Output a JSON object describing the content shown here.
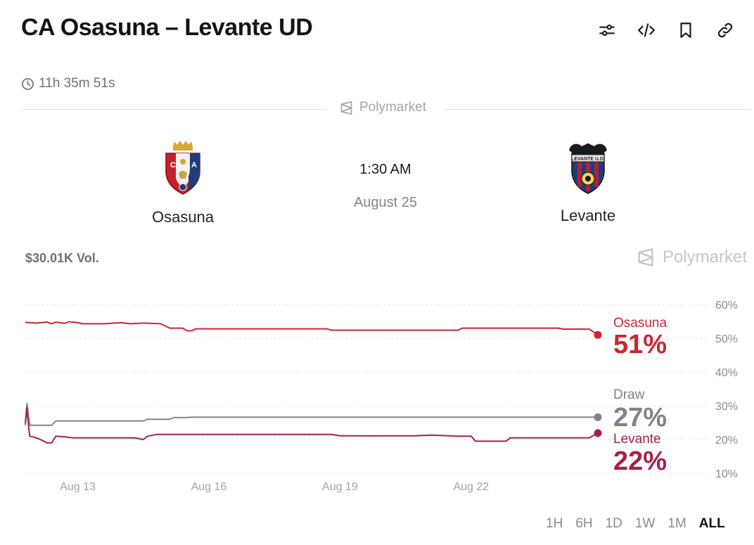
{
  "header": {
    "title": "CA Osasuna – Levante UD",
    "toolbar": [
      {
        "name": "filter-icon"
      },
      {
        "name": "embed-code-icon"
      },
      {
        "name": "bookmark-icon"
      },
      {
        "name": "link-icon"
      }
    ]
  },
  "countdown": "11h 35m 51s",
  "brand": "Polymarket",
  "match": {
    "home": "Osasuna",
    "away": "Levante",
    "time": "1:30 AM",
    "date": "August 25"
  },
  "volume": "$30.01K Vol.",
  "colors": {
    "osasuna": "#cd2630",
    "draw": "#80838f",
    "levante": "#a8204a"
  },
  "chart_data": {
    "type": "line",
    "y_ticks": [
      "60%",
      "50%",
      "40%",
      "30%",
      "20%",
      "10%"
    ],
    "ylim": [
      10,
      60
    ],
    "x_ticks": [
      "Aug 13",
      "Aug 16",
      "Aug 19",
      "Aug 22"
    ],
    "x_tick_positions": [
      12.5,
      15.5,
      18.5,
      21.5
    ],
    "xlim": [
      11.3,
      24.4
    ],
    "grid": true,
    "series": [
      {
        "name": "Osasuna",
        "label": "51%",
        "points": [
          [
            11.3,
            54.7
          ],
          [
            11.55,
            54.5
          ],
          [
            11.8,
            54.8
          ],
          [
            11.9,
            54.3
          ],
          [
            12.0,
            54.8
          ],
          [
            12.2,
            54.4
          ],
          [
            12.3,
            54.9
          ],
          [
            12.5,
            54.6
          ],
          [
            12.6,
            54.3
          ],
          [
            13.1,
            54.3
          ],
          [
            13.5,
            54.6
          ],
          [
            13.7,
            54.3
          ],
          [
            14.0,
            54.5
          ],
          [
            14.4,
            54.3
          ],
          [
            14.6,
            53.0
          ],
          [
            14.9,
            53.0
          ],
          [
            15.0,
            52.2
          ],
          [
            15.1,
            52.2
          ],
          [
            15.2,
            52.8
          ],
          [
            18.2,
            52.8
          ],
          [
            18.3,
            52.4
          ],
          [
            21.2,
            52.4
          ],
          [
            21.3,
            53.0
          ],
          [
            23.5,
            53.0
          ],
          [
            23.6,
            52.7
          ],
          [
            24.2,
            52.7
          ],
          [
            24.4,
            51.0
          ]
        ]
      },
      {
        "name": "Draw",
        "label": "27%",
        "points": [
          [
            11.3,
            24.2
          ],
          [
            11.34,
            30.7
          ],
          [
            11.4,
            24.2
          ],
          [
            11.9,
            24.2
          ],
          [
            12.0,
            25.5
          ],
          [
            14.0,
            25.5
          ],
          [
            14.1,
            26.0
          ],
          [
            14.6,
            26.0
          ],
          [
            14.7,
            26.5
          ],
          [
            15.0,
            26.5
          ],
          [
            15.1,
            26.6
          ],
          [
            24.4,
            26.6
          ]
        ]
      },
      {
        "name": "Levante",
        "label": "22%",
        "points": [
          [
            11.3,
            24.8
          ],
          [
            11.33,
            29.5
          ],
          [
            11.4,
            21.0
          ],
          [
            11.6,
            20.3
          ],
          [
            11.8,
            19.0
          ],
          [
            11.9,
            19.0
          ],
          [
            12.0,
            21.0
          ],
          [
            12.2,
            20.8
          ],
          [
            12.4,
            20.5
          ],
          [
            13.8,
            20.5
          ],
          [
            14.0,
            20.0
          ],
          [
            14.1,
            21.0
          ],
          [
            14.3,
            21.5
          ],
          [
            18.3,
            21.5
          ],
          [
            18.5,
            21.1
          ],
          [
            20.2,
            21.1
          ],
          [
            20.6,
            21.3
          ],
          [
            21.2,
            21.0
          ],
          [
            21.5,
            21.0
          ],
          [
            21.6,
            19.5
          ],
          [
            22.3,
            19.5
          ],
          [
            22.4,
            20.5
          ],
          [
            24.2,
            20.5
          ],
          [
            24.4,
            21.9
          ]
        ]
      }
    ]
  }
}
